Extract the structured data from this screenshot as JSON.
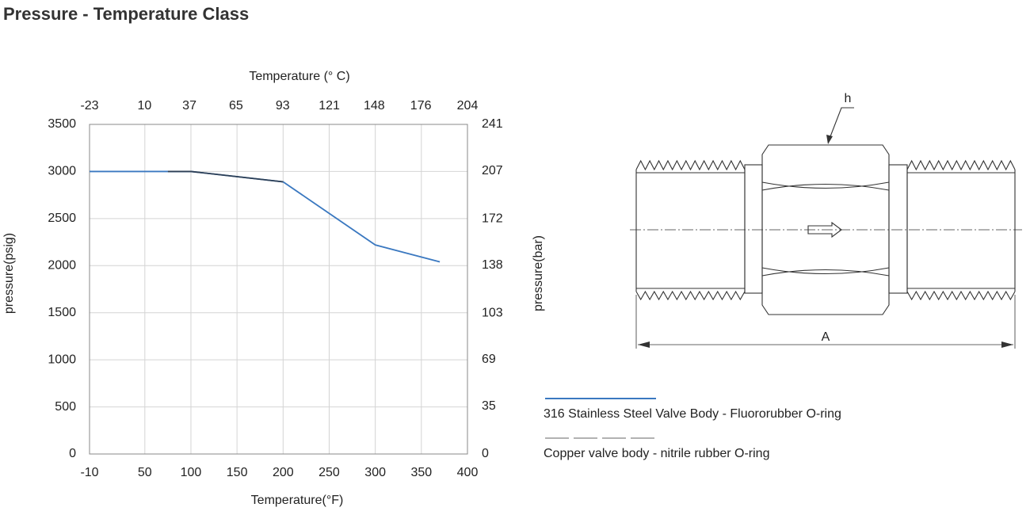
{
  "chart_data": {
    "type": "line",
    "title": "Pressure - Temperature Class",
    "xlabel": "Temperature(°F)",
    "x2label": "Temperature (° C)",
    "ylabel": "pressure(psig)",
    "y2label": "pressure(bar)",
    "xlim": [
      -10,
      400
    ],
    "xticks": [
      -10,
      50,
      100,
      150,
      200,
      250,
      300,
      350,
      400
    ],
    "x2lim": [
      -23,
      204
    ],
    "x2ticks": [
      -23,
      10,
      37,
      65,
      93,
      121,
      148,
      176,
      204
    ],
    "ylim": [
      0,
      3500
    ],
    "yticks": [
      0,
      500,
      1000,
      1500,
      2000,
      2500,
      3000,
      3500
    ],
    "y2lim": [
      0,
      241
    ],
    "y2ticks": [
      0,
      35,
      69,
      103,
      138,
      172,
      207,
      241
    ],
    "grid": true,
    "series": [
      {
        "name": "316 Stainless Steel Valve Body - Fluororubber O-ring",
        "color": "#3a78c0",
        "dash": false,
        "x": [
          -10,
          100,
          200,
          300,
          370
        ],
        "values": [
          3000,
          3000,
          2890,
          2220,
          2040
        ]
      },
      {
        "name": "Copper valve body - nitrile rubber O-ring",
        "color": "#2d3f55",
        "dash": true,
        "x": [
          75,
          100,
          200
        ],
        "values": [
          3000,
          3000,
          2890
        ]
      }
    ]
  },
  "drawing": {
    "height_label": "h",
    "length_label": "A"
  }
}
